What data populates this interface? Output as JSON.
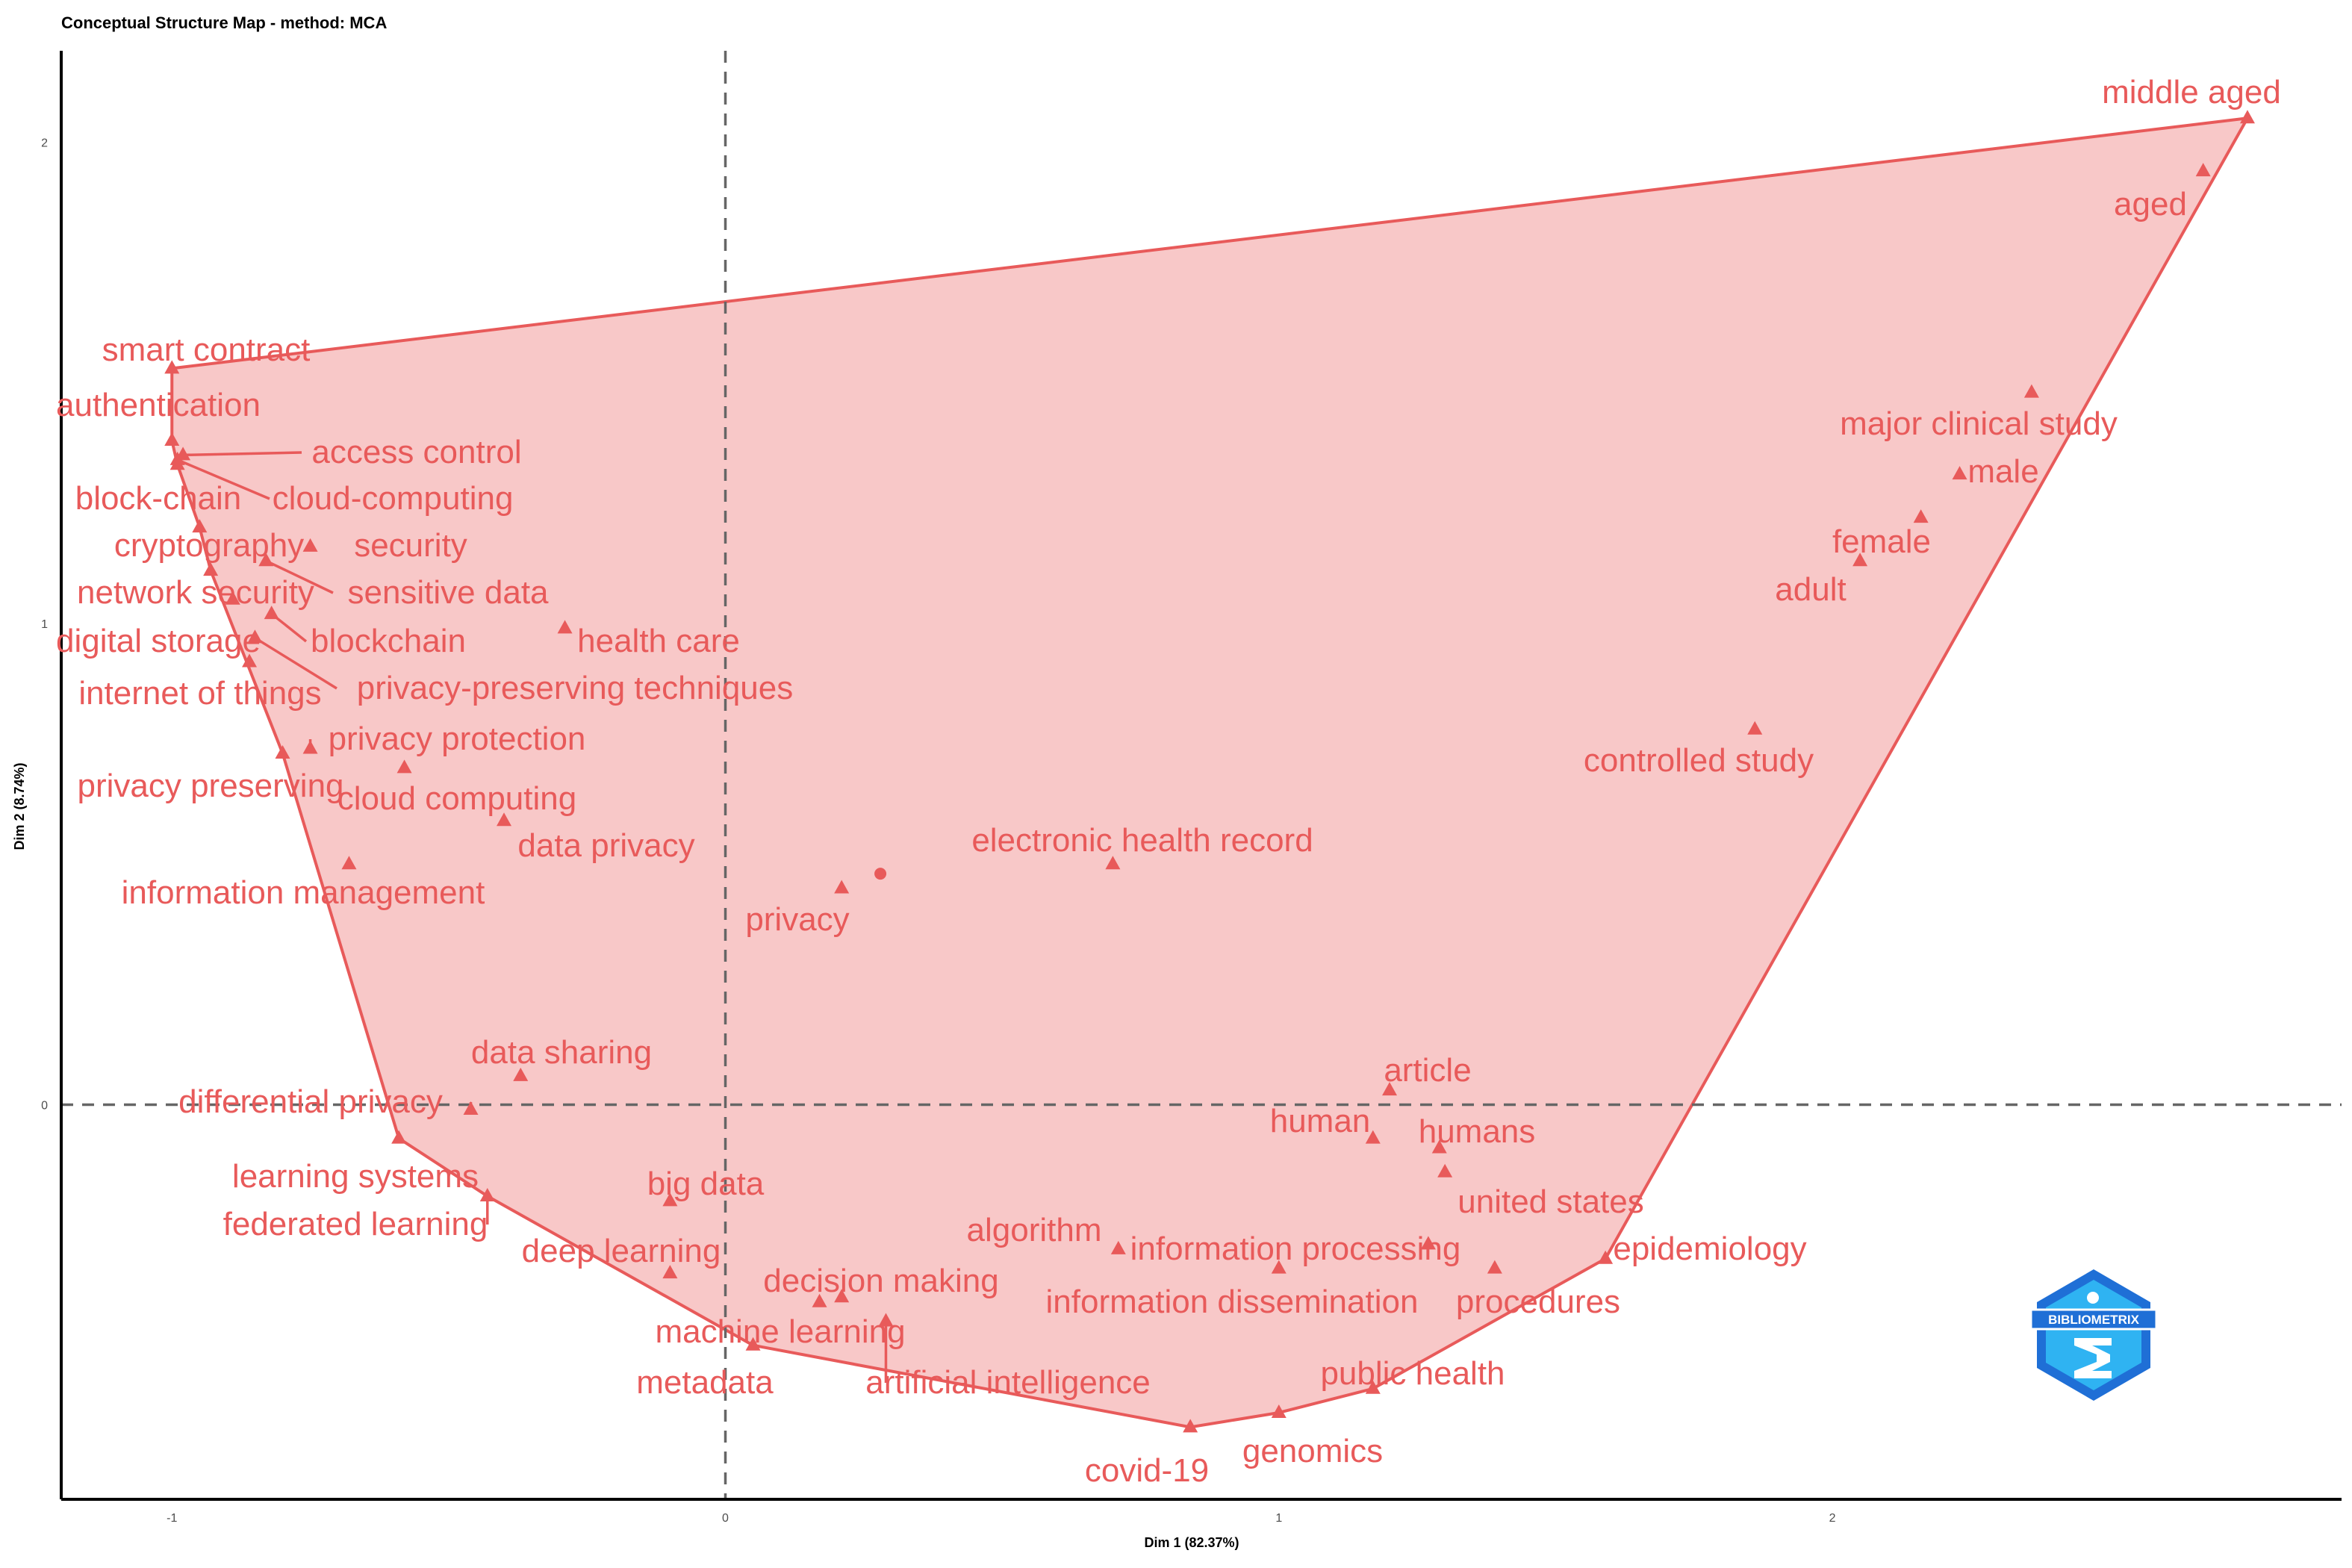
{
  "chart_data": {
    "type": "scatter",
    "title": "Conceptual Structure Map - method: MCA",
    "xlabel": "Dim 1 (82.37%)",
    "ylabel": "Dim 2 (8.74%)",
    "xlim": [
      -1.2,
      2.92
    ],
    "ylim": [
      -0.82,
      2.19
    ],
    "xticks": [
      -1,
      0,
      1,
      2
    ],
    "yticks": [
      0,
      1,
      2
    ],
    "reference_lines": {
      "x": 0,
      "y": 0
    },
    "grid": false,
    "color": "#E85A5A",
    "fill_color": "#F8C8C8",
    "centroid": {
      "x": 0.28,
      "y": 0.48
    },
    "points": [
      {
        "label": "middle aged",
        "x": 2.75,
        "y": 2.05
      },
      {
        "label": "aged",
        "x": 2.67,
        "y": 1.94
      },
      {
        "label": "smart contract",
        "x": -1.0,
        "y": 1.53
      },
      {
        "label": "authentication",
        "x": -1.0,
        "y": 1.38
      },
      {
        "label": "access control",
        "x": -0.98,
        "y": 1.35
      },
      {
        "label": "block-chain",
        "x": -0.99,
        "y": 1.33
      },
      {
        "label": "cloud-computing",
        "x": -0.99,
        "y": 1.34
      },
      {
        "label": "cryptography",
        "x": -0.95,
        "y": 1.2
      },
      {
        "label": "security",
        "x": -0.75,
        "y": 1.16
      },
      {
        "label": "sensitive data",
        "x": -0.83,
        "y": 1.13
      },
      {
        "label": "network security",
        "x": -0.93,
        "y": 1.11
      },
      {
        "label": "blockchain",
        "x": -0.82,
        "y": 1.02
      },
      {
        "label": "digital storage",
        "x": -0.89,
        "y": 1.05
      },
      {
        "label": "health care",
        "x": -0.29,
        "y": 0.99
      },
      {
        "label": "privacy-preserving techniques",
        "x": -0.85,
        "y": 0.97
      },
      {
        "label": "internet of things",
        "x": -0.86,
        "y": 0.92
      },
      {
        "label": "privacy protection",
        "x": -0.75,
        "y": 0.74
      },
      {
        "label": "privacy preserving",
        "x": -0.8,
        "y": 0.73
      },
      {
        "label": "cloud computing",
        "x": -0.58,
        "y": 0.7
      },
      {
        "label": "data privacy",
        "x": -0.4,
        "y": 0.59
      },
      {
        "label": "information management",
        "x": -0.68,
        "y": 0.5
      },
      {
        "label": "electronic health record",
        "x": 0.7,
        "y": 0.5
      },
      {
        "label": "privacy",
        "x": 0.21,
        "y": 0.45
      },
      {
        "label": "major clinical study",
        "x": 2.36,
        "y": 1.48
      },
      {
        "label": "male",
        "x": 2.23,
        "y": 1.31
      },
      {
        "label": "female",
        "x": 2.16,
        "y": 1.22
      },
      {
        "label": "adult",
        "x": 2.05,
        "y": 1.13
      },
      {
        "label": "controlled study",
        "x": 1.86,
        "y": 0.78
      },
      {
        "label": "data sharing",
        "x": -0.37,
        "y": 0.06
      },
      {
        "label": "differential privacy",
        "x": -0.46,
        "y": -0.01
      },
      {
        "label": "learning systems",
        "x": -0.59,
        "y": -0.07
      },
      {
        "label": "federated learning",
        "x": -0.43,
        "y": -0.19
      },
      {
        "label": "big data",
        "x": -0.1,
        "y": -0.2
      },
      {
        "label": "deep learning",
        "x": -0.1,
        "y": -0.35
      },
      {
        "label": "decision making",
        "x": 0.21,
        "y": -0.4
      },
      {
        "label": "machine learning",
        "x": 0.17,
        "y": -0.41
      },
      {
        "label": "artificial intelligence",
        "x": 0.29,
        "y": -0.45
      },
      {
        "label": "metadata",
        "x": 0.05,
        "y": -0.5
      },
      {
        "label": "algorithm",
        "x": 0.71,
        "y": -0.3
      },
      {
        "label": "information processing",
        "x": 1.27,
        "y": -0.29
      },
      {
        "label": "information dissemination",
        "x": 1.0,
        "y": -0.34
      },
      {
        "label": "procedures",
        "x": 1.39,
        "y": -0.34
      },
      {
        "label": "epidemiology",
        "x": 1.59,
        "y": -0.32
      },
      {
        "label": "article",
        "x": 1.2,
        "y": 0.03
      },
      {
        "label": "human",
        "x": 1.17,
        "y": -0.07
      },
      {
        "label": "humans",
        "x": 1.29,
        "y": -0.09
      },
      {
        "label": "united states",
        "x": 1.3,
        "y": -0.14
      },
      {
        "label": "public health",
        "x": 1.17,
        "y": -0.59
      },
      {
        "label": "genomics",
        "x": 1.0,
        "y": -0.64
      },
      {
        "label": "covid-19",
        "x": 0.84,
        "y": -0.67
      }
    ],
    "hull": [
      "middle aged",
      "epidemiology",
      "public health",
      "genomics",
      "covid-19",
      "metadata",
      "federated learning",
      "learning systems",
      "privacy preserving",
      "network security",
      "cryptography",
      "block-chain",
      "authentication",
      "smart contract"
    ]
  },
  "logo": {
    "text": "BIBLIOMETRIX",
    "primary": "#1f6fd6",
    "secondary": "#2fb3f2"
  }
}
